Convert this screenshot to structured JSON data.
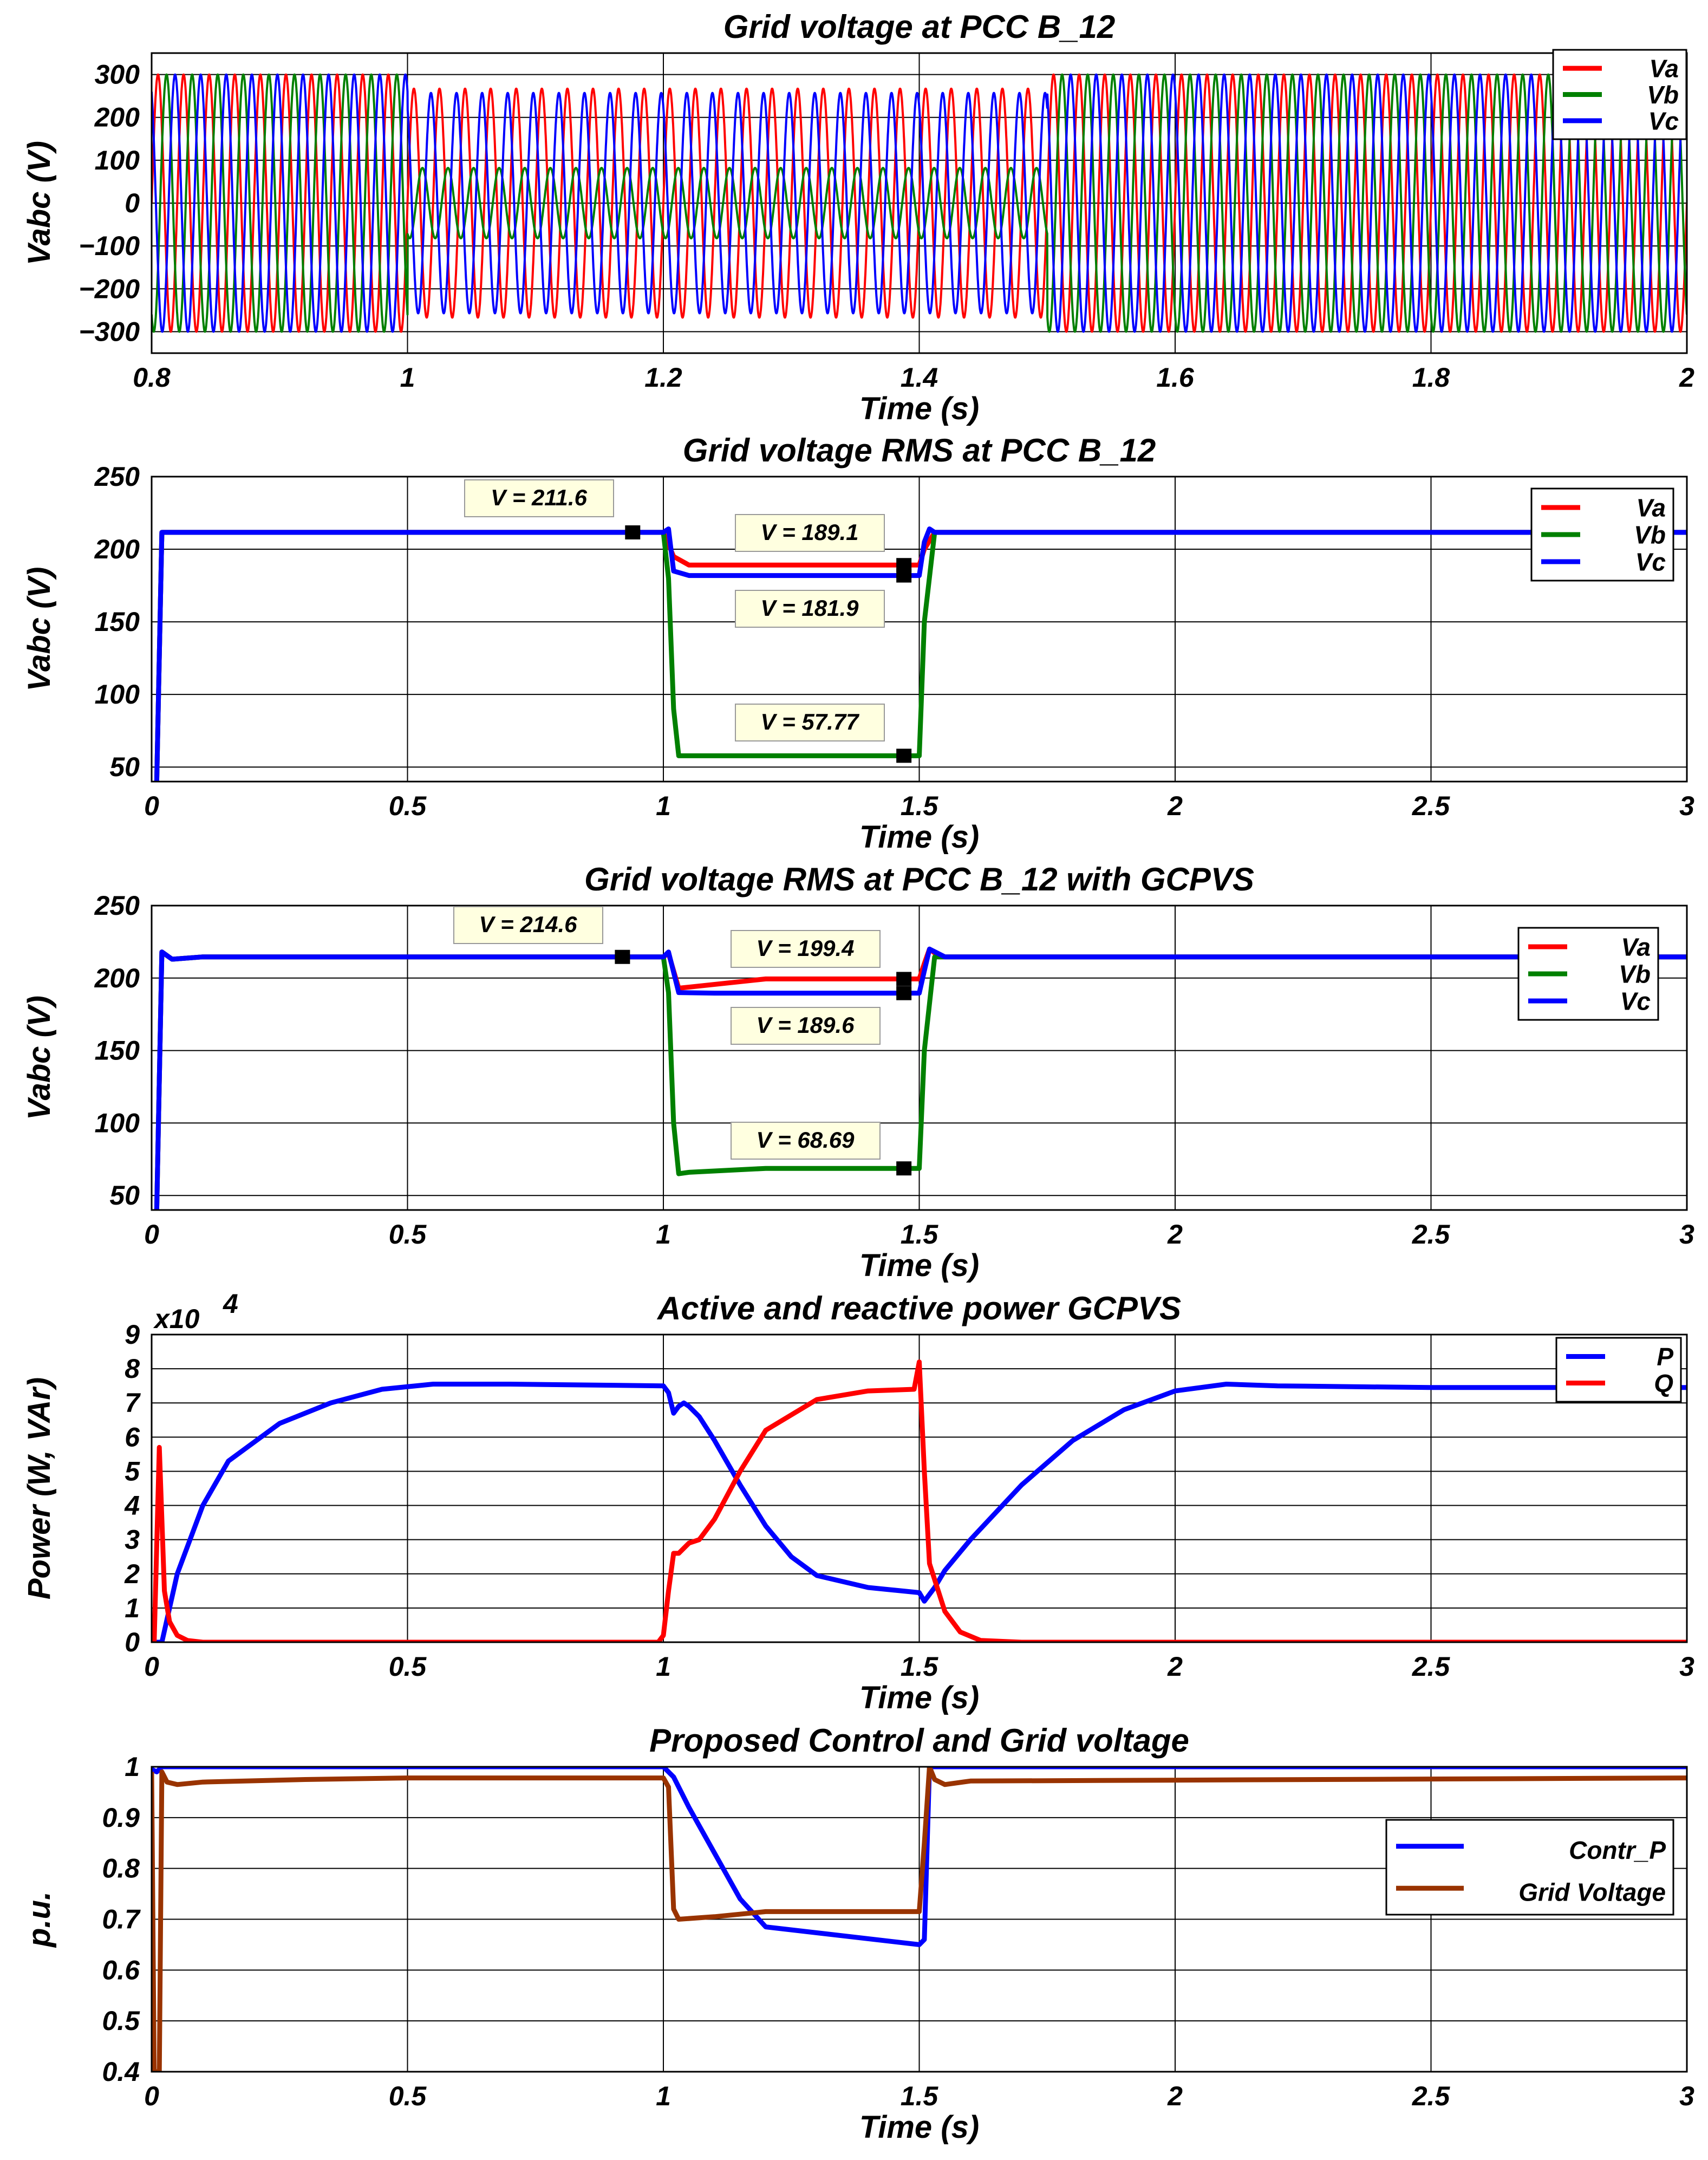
{
  "colors": {
    "Va": "#ff0000",
    "Vb": "#008000",
    "Vc": "#0000ff",
    "P": "#0000ff",
    "Q": "#ff0000",
    "Contr_P": "#0000ff",
    "Grid Voltage": "#993300",
    "grid": "#000000",
    "annotation_bg": "#ffffe0"
  },
  "chart_data": [
    {
      "type": "line",
      "title": "Grid voltage at PCC B_12",
      "xlabel": "Time (s)",
      "ylabel": "Vabc (V)",
      "xlim": [
        0.8,
        2
      ],
      "ylim": [
        -350,
        350
      ],
      "xticks": [
        0.8,
        1,
        1.2,
        1.4,
        1.6,
        1.8,
        2
      ],
      "xtick_labels": [
        "0.8",
        "1",
        "1.2",
        "1.4",
        "1.6",
        "1.8",
        "2"
      ],
      "yticks": [
        -300,
        -200,
        -100,
        0,
        100,
        200,
        300
      ],
      "ytick_labels": [
        "−300",
        "−200",
        "−100",
        "0",
        "100",
        "200",
        "300"
      ],
      "grid": true,
      "legend": "top-right",
      "frequency_hz": 50,
      "series": [
        {
          "name": "Va",
          "phase_deg": 0,
          "amplitude": [
            {
              "t0": 0.8,
              "t1": 1.0,
              "peak": 300
            },
            {
              "t0": 1.0,
              "t1": 1.5,
              "peak": 267
            },
            {
              "t0": 1.5,
              "t1": 2.0,
              "peak": 300
            }
          ]
        },
        {
          "name": "Vb",
          "phase_deg": -120,
          "amplitude": [
            {
              "t0": 0.8,
              "t1": 1.0,
              "peak": 300
            },
            {
              "t0": 1.0,
              "t1": 1.5,
              "peak": 82
            },
            {
              "t0": 1.5,
              "t1": 2.0,
              "peak": 300
            }
          ]
        },
        {
          "name": "Vc",
          "phase_deg": 120,
          "amplitude": [
            {
              "t0": 0.8,
              "t1": 1.0,
              "peak": 300
            },
            {
              "t0": 1.0,
              "t1": 1.5,
              "peak": 257
            },
            {
              "t0": 1.5,
              "t1": 2.0,
              "peak": 300
            }
          ]
        }
      ]
    },
    {
      "type": "line",
      "title": "Grid voltage RMS at PCC B_12",
      "xlabel": "Time (s)",
      "ylabel": "Vabc (V)",
      "xlim": [
        0,
        3
      ],
      "ylim": [
        40,
        250
      ],
      "xticks": [
        0,
        0.5,
        1,
        1.5,
        2,
        2.5,
        3
      ],
      "xtick_labels": [
        "0",
        "0.5",
        "1",
        "1.5",
        "2",
        "2.5",
        "3"
      ],
      "yticks": [
        50,
        100,
        150,
        200,
        250
      ],
      "ytick_labels": [
        "50",
        "100",
        "150",
        "200",
        "250"
      ],
      "grid": true,
      "legend": "top-right",
      "series": [
        {
          "name": "Va",
          "x": [
            0.01,
            0.02,
            1.0,
            1.02,
            1.05,
            1.48,
            1.5,
            1.51,
            1.53,
            3.0
          ],
          "y": [
            40,
            211.6,
            211.6,
            195,
            189.1,
            189.1,
            189.1,
            200,
            211.6,
            211.6
          ]
        },
        {
          "name": "Vb",
          "x": [
            0.01,
            0.02,
            1.0,
            1.01,
            1.02,
            1.03,
            1.48,
            1.5,
            1.51,
            1.53,
            3.0
          ],
          "y": [
            40,
            211.6,
            211.6,
            180,
            90,
            57.77,
            57.77,
            57.77,
            150,
            211.6,
            211.6
          ]
        },
        {
          "name": "Vc",
          "x": [
            0.01,
            0.02,
            1.0,
            1.01,
            1.02,
            1.05,
            1.48,
            1.5,
            1.51,
            1.52,
            1.53,
            3.0
          ],
          "y": [
            40,
            211.6,
            211.6,
            214,
            185,
            181.9,
            181.9,
            181.9,
            205,
            214,
            211.6,
            211.6
          ]
        }
      ],
      "annotations": [
        {
          "text": "V = 211.6",
          "x": 0.94,
          "y": 211.6
        },
        {
          "text": "V = 189.1",
          "x": 1.47,
          "y": 189.1
        },
        {
          "text": "V = 181.9",
          "x": 1.47,
          "y": 181.9
        },
        {
          "text": "V = 57.77",
          "x": 1.47,
          "y": 57.77
        }
      ]
    },
    {
      "type": "line",
      "title": "Grid voltage RMS at PCC B_12 with GCPVS",
      "xlabel": "Time (s)",
      "ylabel": "Vabc (V)",
      "xlim": [
        0,
        3
      ],
      "ylim": [
        40,
        250
      ],
      "xticks": [
        0,
        0.5,
        1,
        1.5,
        2,
        2.5,
        3
      ],
      "xtick_labels": [
        "0",
        "0.5",
        "1",
        "1.5",
        "2",
        "2.5",
        "3"
      ],
      "yticks": [
        50,
        100,
        150,
        200,
        250
      ],
      "ytick_labels": [
        "50",
        "100",
        "150",
        "200",
        "250"
      ],
      "grid": true,
      "legend": "top-right",
      "series": [
        {
          "name": "Va",
          "x": [
            0.01,
            0.02,
            0.04,
            0.1,
            0.5,
            1.0,
            1.01,
            1.03,
            1.2,
            1.48,
            1.5,
            1.51,
            1.52,
            1.54,
            3.0
          ],
          "y": [
            40,
            218,
            213,
            214.6,
            214.6,
            214.6,
            217,
            193,
            199.4,
            199.4,
            199.4,
            210,
            220,
            214.6,
            214.6
          ]
        },
        {
          "name": "Vb",
          "x": [
            0.01,
            0.02,
            0.04,
            0.1,
            0.5,
            1.0,
            1.01,
            1.02,
            1.03,
            1.05,
            1.2,
            1.48,
            1.5,
            1.51,
            1.53,
            3.0
          ],
          "y": [
            40,
            218,
            213,
            214.6,
            214.6,
            214.6,
            190,
            100,
            65,
            66,
            68.69,
            68.69,
            68.69,
            150,
            214.6,
            214.6
          ]
        },
        {
          "name": "Vc",
          "x": [
            0.01,
            0.02,
            0.04,
            0.1,
            0.5,
            1.0,
            1.01,
            1.03,
            1.1,
            1.48,
            1.5,
            1.51,
            1.52,
            1.55,
            3.0
          ],
          "y": [
            40,
            218,
            213,
            214.6,
            214.6,
            214.6,
            218,
            190,
            189.6,
            189.6,
            189.6,
            205,
            220,
            214.6,
            214.6
          ]
        }
      ],
      "annotations": [
        {
          "text": "V = 214.6",
          "x": 0.92,
          "y": 214.6
        },
        {
          "text": "V = 199.4",
          "x": 1.47,
          "y": 199.4
        },
        {
          "text": "V = 189.6",
          "x": 1.47,
          "y": 189.6
        },
        {
          "text": "V = 68.69",
          "x": 1.47,
          "y": 68.69
        }
      ]
    },
    {
      "type": "line",
      "title": "Active and reactive power GCPVS",
      "xlabel": "Time (s)",
      "ylabel": "Power (W, VAr)",
      "scale_label": "x10",
      "scale_exponent": "4",
      "xlim": [
        0,
        3
      ],
      "ylim": [
        0,
        9
      ],
      "xticks": [
        0,
        0.5,
        1,
        1.5,
        2,
        2.5,
        3
      ],
      "xtick_labels": [
        "0",
        "0.5",
        "1",
        "1.5",
        "2",
        "2.5",
        "3"
      ],
      "yticks": [
        0,
        1,
        2,
        3,
        4,
        5,
        6,
        7,
        8,
        9
      ],
      "ytick_labels": [
        "0",
        "1",
        "2",
        "3",
        "4",
        "5",
        "6",
        "7",
        "8",
        "9"
      ],
      "grid": true,
      "legend": "top-right",
      "series": [
        {
          "name": "P",
          "x": [
            0,
            0.02,
            0.05,
            0.1,
            0.15,
            0.25,
            0.35,
            0.45,
            0.55,
            0.7,
            1.0,
            1.01,
            1.02,
            1.03,
            1.04,
            1.05,
            1.07,
            1.1,
            1.15,
            1.2,
            1.25,
            1.3,
            1.4,
            1.5,
            1.51,
            1.53,
            1.55,
            1.6,
            1.7,
            1.8,
            1.9,
            2.0,
            2.1,
            2.2,
            2.5,
            3.0
          ],
          "y": [
            0,
            0,
            2.0,
            4.0,
            5.3,
            6.4,
            7.0,
            7.4,
            7.55,
            7.55,
            7.5,
            7.3,
            6.7,
            6.9,
            7.0,
            6.9,
            6.6,
            5.9,
            4.6,
            3.4,
            2.5,
            1.95,
            1.6,
            1.45,
            1.2,
            1.6,
            2.1,
            3.0,
            4.6,
            5.9,
            6.8,
            7.35,
            7.55,
            7.5,
            7.45,
            7.45
          ]
        },
        {
          "name": "Q",
          "x": [
            0,
            0.005,
            0.015,
            0.025,
            0.035,
            0.05,
            0.07,
            0.1,
            0.2,
            0.5,
            0.99,
            1.0,
            1.01,
            1.02,
            1.03,
            1.05,
            1.07,
            1.1,
            1.15,
            1.2,
            1.3,
            1.4,
            1.49,
            1.5,
            1.51,
            1.52,
            1.55,
            1.58,
            1.62,
            1.7,
            2.0,
            3.0
          ],
          "y": [
            0,
            0,
            5.7,
            1.5,
            0.6,
            0.2,
            0.05,
            0,
            0,
            0,
            0,
            0.2,
            1.5,
            2.6,
            2.6,
            2.9,
            3.0,
            3.6,
            5.0,
            6.2,
            7.1,
            7.35,
            7.4,
            8.2,
            5.0,
            2.3,
            0.9,
            0.3,
            0.05,
            0,
            0,
            0
          ]
        }
      ]
    },
    {
      "type": "line",
      "title": "Proposed Control and Grid voltage",
      "xlabel": "Time (s)",
      "ylabel": "p.u.",
      "xlim": [
        0,
        3
      ],
      "ylim": [
        0.4,
        1.0
      ],
      "xticks": [
        0,
        0.5,
        1,
        1.5,
        2,
        2.5,
        3
      ],
      "xtick_labels": [
        "0",
        "0.5",
        "1",
        "1.5",
        "2",
        "2.5",
        "3"
      ],
      "yticks": [
        0.4,
        0.5,
        0.6,
        0.7,
        0.8,
        0.9,
        1.0
      ],
      "ytick_labels": [
        "0.4",
        "0.5",
        "0.6",
        "0.7",
        "0.8",
        "0.9",
        "1"
      ],
      "grid": true,
      "legend": "right",
      "series": [
        {
          "name": "Contr_P",
          "x": [
            0,
            0.01,
            0.02,
            1.0,
            1.02,
            1.05,
            1.1,
            1.15,
            1.2,
            1.5,
            1.51,
            1.52,
            3.0
          ],
          "y": [
            0.995,
            0.99,
            1.0,
            1.0,
            0.98,
            0.92,
            0.83,
            0.74,
            0.685,
            0.65,
            0.66,
            1.0,
            1.0
          ]
        },
        {
          "name": "Grid Voltage",
          "x": [
            0,
            0.005,
            0.015,
            0.02,
            0.03,
            0.05,
            0.1,
            0.3,
            0.5,
            1.0,
            1.01,
            1.02,
            1.03,
            1.1,
            1.2,
            1.5,
            1.51,
            1.52,
            1.53,
            1.55,
            1.6,
            3.0
          ],
          "y": [
            0.99,
            0.4,
            0.4,
            0.99,
            0.97,
            0.965,
            0.97,
            0.975,
            0.978,
            0.978,
            0.96,
            0.72,
            0.7,
            0.705,
            0.715,
            0.715,
            0.85,
            1.0,
            0.975,
            0.965,
            0.972,
            0.978
          ]
        }
      ]
    }
  ]
}
